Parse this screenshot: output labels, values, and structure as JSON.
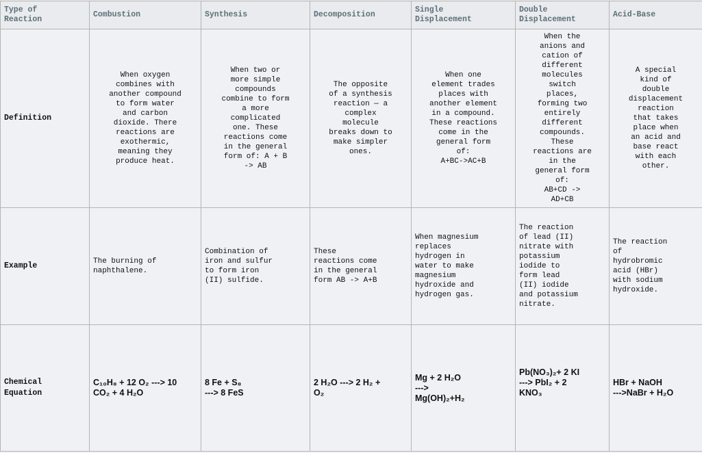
{
  "header": {
    "corner": "Type of\nReaction",
    "columns": [
      "Combustion",
      "Synthesis",
      "Decomposition",
      "Single\nDisplacement",
      "Double\nDisplacement",
      "Acid-Base"
    ]
  },
  "rows": {
    "definition": {
      "label": "Definition",
      "cells": [
        "When oxygen\ncombines with\nanother compound\nto form water\nand carbon\ndioxide. There\nreactions are\nexothermic,\nmeaning they\nproduce heat.",
        "When two or\nmore simple\ncompounds\ncombine to form\na more\ncomplicated\none. These\nreactions come\nin the general\nform of: A + B\n-> AB",
        "The opposite\nof a synthesis\nreaction — a\ncomplex\nmolecule\nbreaks down to\nmake simpler\nones.",
        "When one\nelement trades\nplaces with\nanother element\nin a compound.\nThese reactions\ncome in the\ngeneral form\nof:\nA+BC->AC+B",
        "When the\nanions and\ncation of\ndifferent\nmolecules\nswitch\nplaces,\nforming two\nentirely\ndifferent\ncompounds.\nThese\nreactions are\nin the\ngeneral form\nof:\nAB+CD ->\nAD+CB",
        "A special\nkind of\ndouble\ndisplacement\nreaction\nthat takes\nplace when\nan acid and\nbase react\nwith each\nother."
      ]
    },
    "example": {
      "label": "Example",
      "cells": [
        "The burning of\nnaphthalene.",
        "Combination of\niron and sulfur\nto form iron\n(II) sulfide.",
        "These\nreactions come\nin the general\nform AB -> A+B",
        "When magnesium\nreplaces\nhydrogen in\nwater to make\nmagnesium\nhydroxide and\nhydrogen gas.",
        "The reaction\nof lead (II)\nnitrate with\npotassium\niodide to\nform lead\n(II) iodide\nand potassium\nnitrate.",
        "The reaction\nof\nhydrobromic\nacid (HBr)\nwith sodium\nhydroxide."
      ]
    },
    "equation": {
      "label": "Chemical\nEquation",
      "cells": [
        "C₁₀H₈ + 12 O₂ ---> 10\nCO₂ + 4 H₂O",
        "8 Fe + S₈\n---> 8 FeS",
        "2 H₂O ---> 2 H₂ +\nO₂",
        "Mg + 2 H₂O\n--->\nMg(OH)₂+H₂",
        "Pb(NO₃)₂+ 2 KI\n---> PbI₂ + 2\nKNO₃\n\n",
        "HBr + NaOH\n--->NaBr + H₂O"
      ]
    }
  }
}
